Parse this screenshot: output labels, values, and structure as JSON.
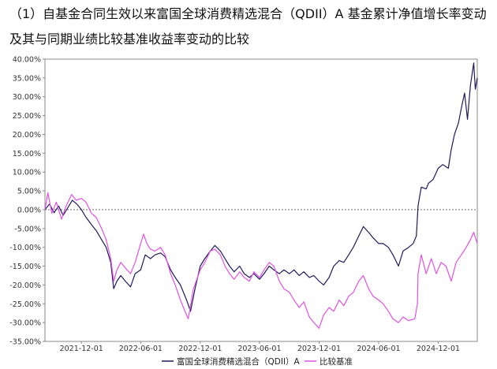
{
  "title": "（1）自基金合同生效以来富国全球消费精选混合（QDII）A 基金累计净值增长率变动及其与同期业绩比较基准收益率变动的比较",
  "chart_data": {
    "type": "line",
    "ylim": [
      -35,
      40
    ],
    "y_ticks": [
      40,
      35,
      30,
      25,
      20,
      15,
      10,
      5,
      0,
      -5,
      -10,
      -15,
      -20,
      -25,
      -30,
      -35
    ],
    "y_tick_labels": [
      "40.00%",
      "35.00%",
      "30.00%",
      "25.00%",
      "20.00%",
      "15.00%",
      "10.00%",
      "5.00%",
      "0.00%",
      "-5.00%",
      "-10.00%",
      "-15.00%",
      "-20.00%",
      "-25.00%",
      "-30.00%",
      "-35.00%"
    ],
    "x_range": [
      "2021-08-11",
      "2025-03-31"
    ],
    "x_ticks": [
      "2021-12-01",
      "2022-06-01",
      "2022-12-01",
      "2023-06-01",
      "2023-12-01",
      "2024-06-01",
      "2024-12-01"
    ],
    "grid": false,
    "legend_position": "bottom",
    "series": [
      {
        "name": "富国全球消费精选混合（QDII）A",
        "color": "#1f1a5c",
        "points": [
          [
            "2021-08-11",
            0
          ],
          [
            "2021-08-25",
            1.5
          ],
          [
            "2021-09-08",
            -0.8
          ],
          [
            "2021-09-22",
            1
          ],
          [
            "2021-10-06",
            -1.5
          ],
          [
            "2021-10-20",
            0.5
          ],
          [
            "2021-11-03",
            2.5
          ],
          [
            "2021-11-17",
            1.5
          ],
          [
            "2021-12-01",
            0
          ],
          [
            "2021-12-15",
            -2
          ],
          [
            "2022-01-01",
            -4
          ],
          [
            "2022-01-15",
            -5.5
          ],
          [
            "2022-02-01",
            -8
          ],
          [
            "2022-02-15",
            -10
          ],
          [
            "2022-03-01",
            -14
          ],
          [
            "2022-03-10",
            -21
          ],
          [
            "2022-03-20",
            -19
          ],
          [
            "2022-04-01",
            -17.5
          ],
          [
            "2022-04-15",
            -19
          ],
          [
            "2022-05-01",
            -20.5
          ],
          [
            "2022-05-15",
            -17
          ],
          [
            "2022-06-01",
            -16
          ],
          [
            "2022-06-15",
            -12
          ],
          [
            "2022-07-01",
            -13
          ],
          [
            "2022-07-15",
            -12
          ],
          [
            "2022-08-01",
            -11.5
          ],
          [
            "2022-08-15",
            -12.5
          ],
          [
            "2022-09-01",
            -16
          ],
          [
            "2022-09-15",
            -18
          ],
          [
            "2022-10-01",
            -20
          ],
          [
            "2022-10-20",
            -24
          ],
          [
            "2022-11-01",
            -27
          ],
          [
            "2022-11-15",
            -21
          ],
          [
            "2022-12-01",
            -15
          ],
          [
            "2022-12-15",
            -13
          ],
          [
            "2023-01-01",
            -11
          ],
          [
            "2023-01-15",
            -9.5
          ],
          [
            "2023-02-01",
            -11
          ],
          [
            "2023-02-15",
            -13
          ],
          [
            "2023-03-01",
            -15
          ],
          [
            "2023-03-15",
            -16.5
          ],
          [
            "2023-04-01",
            -15
          ],
          [
            "2023-04-15",
            -17
          ],
          [
            "2023-05-01",
            -18
          ],
          [
            "2023-05-15",
            -17
          ],
          [
            "2023-06-01",
            -18.5
          ],
          [
            "2023-06-15",
            -17
          ],
          [
            "2023-07-01",
            -15
          ],
          [
            "2023-07-15",
            -16
          ],
          [
            "2023-08-01",
            -17
          ],
          [
            "2023-08-15",
            -16
          ],
          [
            "2023-09-01",
            -17
          ],
          [
            "2023-09-15",
            -16
          ],
          [
            "2023-10-01",
            -17.5
          ],
          [
            "2023-10-15",
            -16.5
          ],
          [
            "2023-11-01",
            -18
          ],
          [
            "2023-11-15",
            -17.5
          ],
          [
            "2023-12-01",
            -19
          ],
          [
            "2023-12-15",
            -20
          ],
          [
            "2024-01-01",
            -18
          ],
          [
            "2024-01-15",
            -15
          ],
          [
            "2024-02-01",
            -13.5
          ],
          [
            "2024-02-15",
            -14
          ],
          [
            "2024-03-01",
            -12
          ],
          [
            "2024-03-15",
            -10
          ],
          [
            "2024-04-01",
            -7
          ],
          [
            "2024-04-15",
            -4.5
          ],
          [
            "2024-05-01",
            -6
          ],
          [
            "2024-05-15",
            -7.5
          ],
          [
            "2024-06-01",
            -9
          ],
          [
            "2024-06-15",
            -9
          ],
          [
            "2024-07-01",
            -10
          ],
          [
            "2024-07-15",
            -12
          ],
          [
            "2024-08-01",
            -15
          ],
          [
            "2024-08-15",
            -11
          ],
          [
            "2024-09-01",
            -10
          ],
          [
            "2024-09-15",
            -9
          ],
          [
            "2024-09-25",
            -7
          ],
          [
            "2024-09-30",
            1
          ],
          [
            "2024-10-10",
            6
          ],
          [
            "2024-10-25",
            5.5
          ],
          [
            "2024-11-01",
            7
          ],
          [
            "2024-11-15",
            8
          ],
          [
            "2024-12-01",
            11
          ],
          [
            "2024-12-15",
            12
          ],
          [
            "2025-01-01",
            11
          ],
          [
            "2025-01-10",
            16
          ],
          [
            "2025-01-20",
            20
          ],
          [
            "2025-02-01",
            23
          ],
          [
            "2025-02-10",
            27
          ],
          [
            "2025-02-20",
            31
          ],
          [
            "2025-03-01",
            24
          ],
          [
            "2025-03-10",
            33
          ],
          [
            "2025-03-20",
            39
          ],
          [
            "2025-03-25",
            32
          ],
          [
            "2025-03-31",
            35
          ]
        ]
      },
      {
        "name": "比较基准",
        "color": "#e052e0",
        "points": [
          [
            "2021-08-11",
            0
          ],
          [
            "2021-08-20",
            4.5
          ],
          [
            "2021-09-01",
            -1
          ],
          [
            "2021-09-15",
            2
          ],
          [
            "2021-10-01",
            -2.5
          ],
          [
            "2021-10-15",
            1
          ],
          [
            "2021-11-01",
            4
          ],
          [
            "2021-11-15",
            2.5
          ],
          [
            "2021-12-01",
            3
          ],
          [
            "2021-12-15",
            2
          ],
          [
            "2022-01-01",
            -1
          ],
          [
            "2022-01-15",
            -2
          ],
          [
            "2022-02-01",
            -5
          ],
          [
            "2022-02-15",
            -8
          ],
          [
            "2022-03-01",
            -13
          ],
          [
            "2022-03-10",
            -19
          ],
          [
            "2022-03-20",
            -16
          ],
          [
            "2022-04-01",
            -14
          ],
          [
            "2022-04-15",
            -15.5
          ],
          [
            "2022-05-01",
            -17
          ],
          [
            "2022-05-15",
            -14
          ],
          [
            "2022-06-01",
            -9
          ],
          [
            "2022-06-10",
            -6.5
          ],
          [
            "2022-06-20",
            -9
          ],
          [
            "2022-07-01",
            -10.5
          ],
          [
            "2022-07-15",
            -11
          ],
          [
            "2022-08-01",
            -10
          ],
          [
            "2022-08-15",
            -12
          ],
          [
            "2022-09-01",
            -17
          ],
          [
            "2022-09-15",
            -20
          ],
          [
            "2022-10-01",
            -24
          ],
          [
            "2022-10-15",
            -27
          ],
          [
            "2022-10-25",
            -29
          ],
          [
            "2022-11-10",
            -21
          ],
          [
            "2022-12-01",
            -16
          ],
          [
            "2022-12-15",
            -14
          ],
          [
            "2023-01-01",
            -11
          ],
          [
            "2023-01-15",
            -10.5
          ],
          [
            "2023-02-01",
            -12
          ],
          [
            "2023-02-15",
            -15
          ],
          [
            "2023-03-01",
            -17
          ],
          [
            "2023-03-15",
            -18.5
          ],
          [
            "2023-04-01",
            -16.5
          ],
          [
            "2023-04-15",
            -18
          ],
          [
            "2023-05-01",
            -19
          ],
          [
            "2023-05-15",
            -16.5
          ],
          [
            "2023-06-01",
            -18
          ],
          [
            "2023-06-15",
            -16
          ],
          [
            "2023-07-01",
            -14
          ],
          [
            "2023-07-15",
            -15
          ],
          [
            "2023-08-01",
            -19
          ],
          [
            "2023-08-15",
            -21
          ],
          [
            "2023-09-01",
            -22
          ],
          [
            "2023-09-15",
            -24
          ],
          [
            "2023-10-01",
            -26
          ],
          [
            "2023-10-15",
            -24.5
          ],
          [
            "2023-11-01",
            -28.5
          ],
          [
            "2023-11-15",
            -30
          ],
          [
            "2023-12-01",
            -31.5
          ],
          [
            "2023-12-15",
            -28
          ],
          [
            "2024-01-01",
            -26
          ],
          [
            "2024-01-15",
            -27
          ],
          [
            "2024-02-01",
            -24
          ],
          [
            "2024-02-15",
            -25.5
          ],
          [
            "2024-03-01",
            -23
          ],
          [
            "2024-03-15",
            -22
          ],
          [
            "2024-04-01",
            -19
          ],
          [
            "2024-04-15",
            -17.5
          ],
          [
            "2024-05-01",
            -21
          ],
          [
            "2024-05-15",
            -23
          ],
          [
            "2024-06-01",
            -24
          ],
          [
            "2024-06-15",
            -25
          ],
          [
            "2024-07-01",
            -27
          ],
          [
            "2024-07-15",
            -29
          ],
          [
            "2024-08-01",
            -30
          ],
          [
            "2024-08-15",
            -28.5
          ],
          [
            "2024-09-01",
            -29.5
          ],
          [
            "2024-09-20",
            -29
          ],
          [
            "2024-09-28",
            -25
          ],
          [
            "2024-09-30",
            -17
          ],
          [
            "2024-10-10",
            -12
          ],
          [
            "2024-10-25",
            -17
          ],
          [
            "2024-11-10",
            -13
          ],
          [
            "2024-11-25",
            -17
          ],
          [
            "2024-12-10",
            -14
          ],
          [
            "2024-12-25",
            -15
          ],
          [
            "2025-01-10",
            -19
          ],
          [
            "2025-01-25",
            -14
          ],
          [
            "2025-02-10",
            -12
          ],
          [
            "2025-02-25",
            -10
          ],
          [
            "2025-03-10",
            -8
          ],
          [
            "2025-03-20",
            -6
          ],
          [
            "2025-03-31",
            -9
          ]
        ]
      }
    ]
  }
}
